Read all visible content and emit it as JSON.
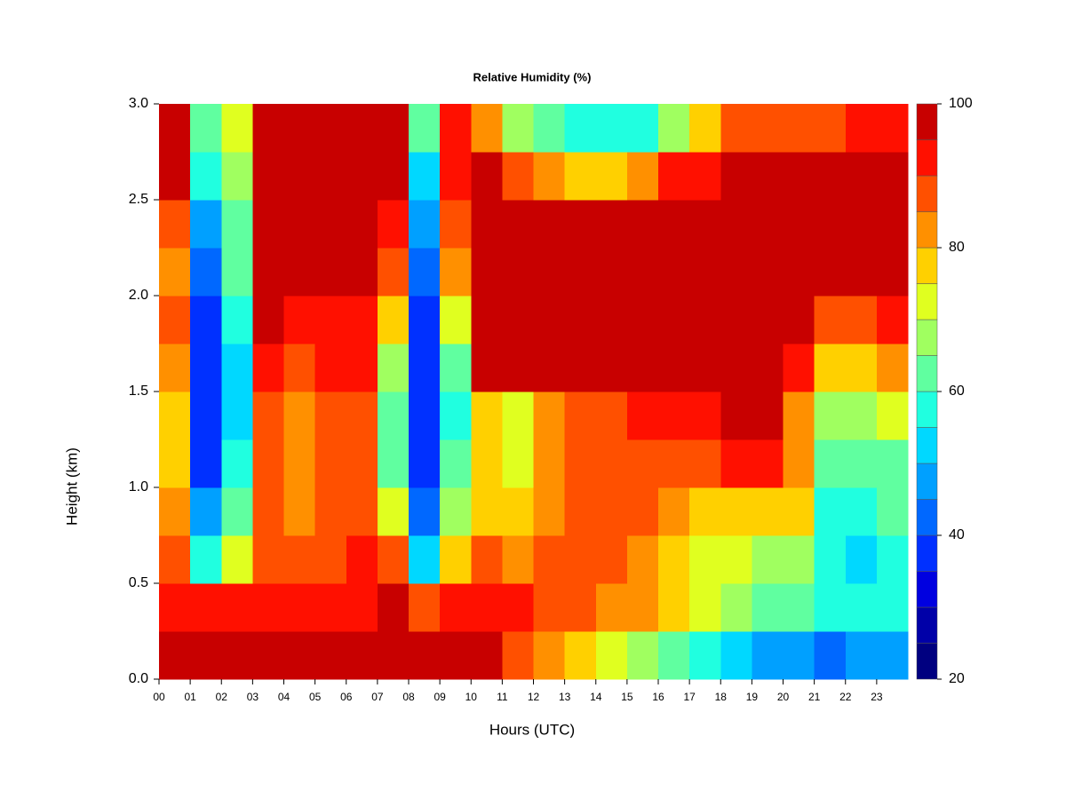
{
  "chart_data": {
    "type": "heatmap",
    "title": "Relative Humidity (%)",
    "xlabel": "Hours (UTC)",
    "ylabel": "Height (km)",
    "x_bins": [
      0,
      1,
      2,
      3,
      4,
      5,
      6,
      7,
      8,
      9,
      10,
      11,
      12,
      13,
      14,
      15,
      16,
      17,
      18,
      19,
      20,
      21,
      22,
      23,
      24
    ],
    "y_bins": [
      0,
      0.25,
      0.5,
      0.75,
      1,
      1.25,
      1.5,
      1.75,
      2,
      2.25,
      2.5,
      2.75,
      3
    ],
    "values": [
      [
        98,
        97,
        97,
        96,
        95,
        95,
        96,
        98,
        97,
        97,
        96,
        88,
        82,
        78,
        72,
        68,
        62,
        55,
        50,
        48,
        48,
        42,
        45,
        45
      ],
      [
        90,
        92,
        90,
        92,
        92,
        90,
        92,
        95,
        88,
        90,
        92,
        90,
        88,
        86,
        84,
        80,
        76,
        70,
        65,
        62,
        60,
        55,
        55,
        55
      ],
      [
        85,
        55,
        70,
        88,
        85,
        88,
        90,
        85,
        50,
        75,
        85,
        82,
        85,
        85,
        85,
        82,
        78,
        72,
        70,
        68,
        65,
        55,
        52,
        55
      ],
      [
        80,
        45,
        60,
        88,
        82,
        85,
        88,
        70,
        40,
        65,
        78,
        75,
        82,
        85,
        86,
        85,
        82,
        78,
        78,
        76,
        75,
        58,
        58,
        60
      ],
      [
        75,
        38,
        55,
        88,
        82,
        85,
        88,
        62,
        38,
        60,
        75,
        72,
        80,
        85,
        87,
        88,
        88,
        86,
        92,
        90,
        80,
        62,
        62,
        62
      ],
      [
        78,
        35,
        52,
        88,
        84,
        85,
        88,
        60,
        35,
        58,
        78,
        72,
        80,
        85,
        88,
        90,
        92,
        92,
        96,
        96,
        82,
        66,
        68,
        70
      ],
      [
        82,
        35,
        52,
        92,
        88,
        90,
        90,
        65,
        35,
        62,
        96,
        97,
        98,
        98,
        98,
        98,
        98,
        98,
        98,
        98,
        92,
        76,
        78,
        80
      ],
      [
        85,
        37,
        55,
        96,
        92,
        93,
        94,
        75,
        38,
        72,
        98,
        99,
        99,
        99,
        99,
        99,
        99,
        99,
        98,
        98,
        97,
        88,
        88,
        90
      ],
      [
        80,
        42,
        60,
        98,
        98,
        98,
        98,
        85,
        42,
        80,
        99,
        99,
        99,
        99,
        99,
        99,
        99,
        99,
        99,
        99,
        99,
        97,
        96,
        97
      ],
      [
        85,
        45,
        60,
        98,
        98,
        98,
        98,
        92,
        45,
        85,
        99,
        98,
        98,
        97,
        97,
        98,
        98,
        99,
        99,
        99,
        99,
        99,
        98,
        98
      ],
      [
        97,
        55,
        65,
        99,
        99,
        99,
        99,
        98,
        52,
        90,
        96,
        88,
        80,
        78,
        78,
        82,
        90,
        94,
        96,
        96,
        95,
        97,
        96,
        96
      ],
      [
        98,
        62,
        70,
        99,
        99,
        99,
        98,
        99,
        60,
        92,
        80,
        68,
        62,
        58,
        56,
        58,
        66,
        78,
        85,
        88,
        88,
        85,
        90,
        90
      ]
    ],
    "levels": [
      20,
      25,
      30,
      35,
      40,
      45,
      50,
      55,
      60,
      65,
      70,
      75,
      80,
      85,
      90,
      95,
      100
    ],
    "colors": [
      "#000080",
      "#0000a8",
      "#0000e0",
      "#0030ff",
      "#0068ff",
      "#00a0ff",
      "#00d8ff",
      "#20ffe0",
      "#60ffa0",
      "#a0ff60",
      "#e0ff20",
      "#ffd000",
      "#ff9000",
      "#ff5000",
      "#ff1000",
      "#c80000"
    ],
    "colorbar_ticks": [
      20,
      40,
      60,
      80,
      100
    ],
    "xlim": [
      0,
      24
    ],
    "ylim": [
      0,
      3
    ],
    "xticks": [
      {
        "value": 0,
        "label": "00"
      },
      {
        "value": 1,
        "label": "01"
      },
      {
        "value": 2,
        "label": "02"
      },
      {
        "value": 3,
        "label": "03"
      },
      {
        "value": 4,
        "label": "04"
      },
      {
        "value": 5,
        "label": "05"
      },
      {
        "value": 6,
        "label": "06"
      },
      {
        "value": 7,
        "label": "07"
      },
      {
        "value": 8,
        "label": "08"
      },
      {
        "value": 9,
        "label": "09"
      },
      {
        "value": 10,
        "label": "10"
      },
      {
        "value": 11,
        "label": "11"
      },
      {
        "value": 12,
        "label": "12"
      },
      {
        "value": 13,
        "label": "13"
      },
      {
        "value": 14,
        "label": "14"
      },
      {
        "value": 15,
        "label": "15"
      },
      {
        "value": 16,
        "label": "16"
      },
      {
        "value": 17,
        "label": "17"
      },
      {
        "value": 18,
        "label": "18"
      },
      {
        "value": 19,
        "label": "19"
      },
      {
        "value": 20,
        "label": "20"
      },
      {
        "value": 21,
        "label": "21"
      },
      {
        "value": 22,
        "label": "22"
      },
      {
        "value": 23,
        "label": "23"
      }
    ],
    "yticks": [
      {
        "value": 0,
        "label": "0.0"
      },
      0.5,
      {
        "value": 1,
        "label": "1.0"
      },
      1.5,
      {
        "value": 2,
        "label": "2.0"
      },
      2.5,
      {
        "value": 3,
        "label": "3.0"
      }
    ]
  }
}
